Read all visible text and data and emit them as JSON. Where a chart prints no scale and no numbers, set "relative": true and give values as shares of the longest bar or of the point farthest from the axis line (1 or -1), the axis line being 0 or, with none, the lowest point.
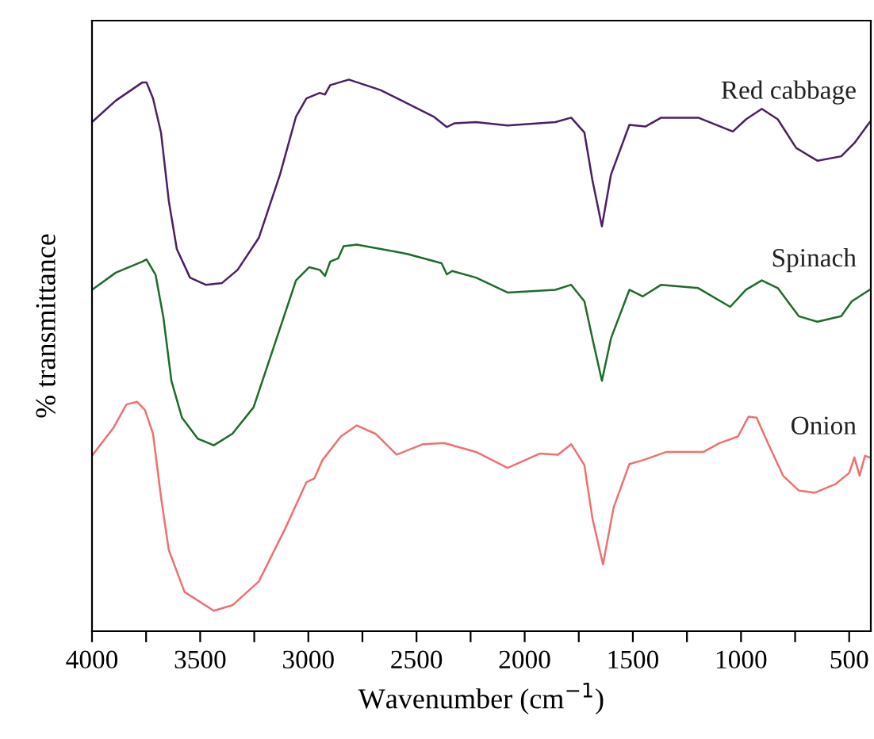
{
  "chart_data": {
    "type": "line",
    "relative": true,
    "xlabel": "Wavenumber (cm$^{−1}$)",
    "ylabel": "% transmittance",
    "xlim": [
      4000,
      400
    ],
    "xticks": [
      4000,
      {
        "value": 3750,
        "label": null
      },
      3500,
      {
        "value": 3250,
        "label": null
      },
      3000,
      {
        "value": 2750,
        "label": null
      },
      2500,
      {
        "value": 2250,
        "label": null
      },
      2000,
      {
        "value": 1750,
        "label": null
      },
      1500,
      {
        "value": 1250,
        "label": null
      },
      1000,
      {
        "value": 750,
        "label": null
      },
      500
    ],
    "tick_labels": "x",
    "grid": false,
    "legend": false,
    "marker": "none",
    "line_style": "solid",
    "series": [
      {
        "name": "Red cabbage",
        "color": "#4b1f63",
        "x": [
          4000,
          3890,
          3767,
          3748,
          3718,
          3681,
          3645,
          3608,
          3547,
          3474,
          3400,
          3327,
          3229,
          3131,
          3057,
          3009,
          2947,
          2923,
          2899,
          2813,
          2666,
          2421,
          2360,
          2324,
          2225,
          2079,
          1858,
          1785,
          1724,
          1687,
          1643,
          1601,
          1516,
          1442,
          1369,
          1198,
          1038,
          977,
          904,
          830,
          745,
          647,
          537,
          476,
          405
        ],
        "values": [
          0.923,
          0.962,
          0.995,
          0.995,
          0.966,
          0.904,
          0.78,
          0.693,
          0.641,
          0.628,
          0.631,
          0.655,
          0.713,
          0.828,
          0.933,
          0.966,
          0.976,
          0.973,
          0.99,
          1.0,
          0.981,
          0.933,
          0.914,
          0.921,
          0.923,
          0.917,
          0.923,
          0.931,
          0.904,
          0.818,
          0.734,
          0.828,
          0.918,
          0.915,
          0.931,
          0.931,
          0.906,
          0.928,
          0.947,
          0.928,
          0.876,
          0.853,
          0.861,
          0.885,
          0.923
        ]
      },
      {
        "name": "Spinach",
        "color": "#1f6b2a",
        "x": [
          4000,
          3890,
          3767,
          3748,
          3706,
          3670,
          3633,
          3584,
          3511,
          3437,
          3351,
          3253,
          3155,
          3057,
          2996,
          2947,
          2923,
          2899,
          2862,
          2837,
          2776,
          2543,
          2384,
          2360,
          2335,
          2225,
          2079,
          1858,
          1785,
          1724,
          1687,
          1643,
          1601,
          1516,
          1454,
          1369,
          1198,
          1050,
          977,
          904,
          830,
          733,
          647,
          537,
          488,
          405
        ],
        "values": [
          0.619,
          0.65,
          0.67,
          0.674,
          0.646,
          0.569,
          0.454,
          0.387,
          0.349,
          0.337,
          0.358,
          0.406,
          0.521,
          0.636,
          0.66,
          0.655,
          0.644,
          0.67,
          0.676,
          0.698,
          0.701,
          0.684,
          0.667,
          0.647,
          0.653,
          0.641,
          0.614,
          0.619,
          0.628,
          0.598,
          0.531,
          0.454,
          0.531,
          0.619,
          0.607,
          0.628,
          0.622,
          0.588,
          0.619,
          0.636,
          0.622,
          0.571,
          0.561,
          0.571,
          0.598,
          0.619
        ]
      },
      {
        "name": "Onion",
        "color": "#f07070",
        "x": [
          4000,
          3902,
          3841,
          3792,
          3755,
          3718,
          3681,
          3645,
          3572,
          3437,
          3351,
          3229,
          3107,
          3009,
          2972,
          2935,
          2850,
          2776,
          2690,
          2592,
          2470,
          2372,
          2225,
          2079,
          1931,
          1846,
          1785,
          1724,
          1687,
          1638,
          1589,
          1516,
          1454,
          1344,
          1173,
          1100,
          1014,
          965,
          928,
          879,
          806,
          733,
          659,
          562,
          500,
          476,
          452,
          427,
          405
        ],
        "values": [
          0.318,
          0.368,
          0.411,
          0.416,
          0.401,
          0.358,
          0.243,
          0.147,
          0.071,
          0.037,
          0.047,
          0.09,
          0.186,
          0.27,
          0.277,
          0.31,
          0.353,
          0.373,
          0.358,
          0.32,
          0.339,
          0.341,
          0.325,
          0.296,
          0.322,
          0.32,
          0.339,
          0.301,
          0.205,
          0.121,
          0.224,
          0.303,
          0.31,
          0.325,
          0.325,
          0.341,
          0.353,
          0.389,
          0.387,
          0.344,
          0.282,
          0.255,
          0.251,
          0.267,
          0.287,
          0.315,
          0.282,
          0.318,
          0.315
        ]
      }
    ]
  }
}
